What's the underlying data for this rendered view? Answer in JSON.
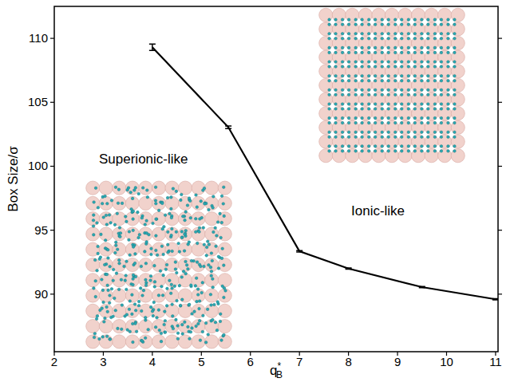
{
  "chart_data": {
    "type": "line",
    "xlabel": "q",
    "xlabel_sup": "*",
    "xlabel_sub": "B",
    "ylabel": "Box Size/σ",
    "x": [
      4,
      5.55,
      7,
      8,
      9.5,
      11
    ],
    "series": [
      {
        "name": "Box Size",
        "color": "#000000",
        "marker": "none",
        "line_style": "solid",
        "values": [
          109.3,
          103.05,
          93.35,
          92.0,
          90.55,
          89.6
        ],
        "errors": [
          0.25,
          0.1,
          0.05,
          0.05,
          0.05,
          0.05
        ]
      }
    ],
    "xlim": [
      2,
      11.05
    ],
    "xticks": [
      2,
      3,
      4,
      5,
      6,
      7,
      8,
      9,
      10,
      11
    ],
    "ylim": [
      85.5,
      112.5
    ],
    "yticks": [
      90,
      95,
      100,
      105,
      110
    ],
    "grid": false,
    "annotations": [
      {
        "text": "Superionic-like"
      },
      {
        "text": "Ionic-like"
      }
    ]
  }
}
